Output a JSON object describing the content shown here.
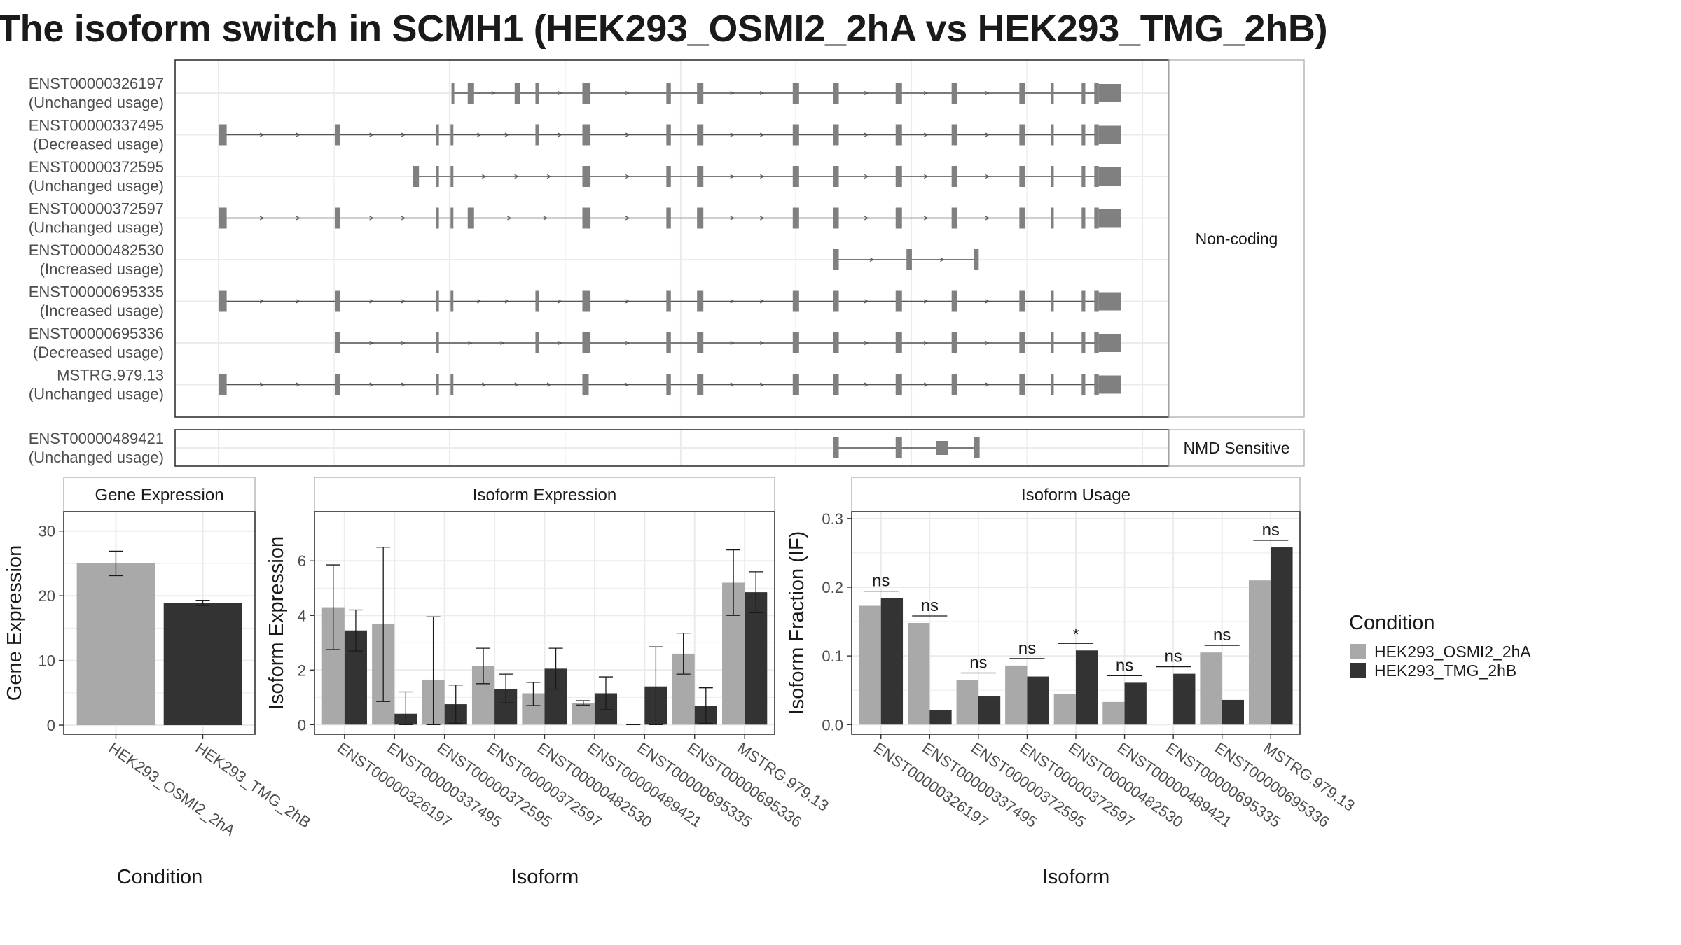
{
  "title": "The isoform switch in SCMH1 (HEK293_OSMI2_2hA vs HEK293_TMG_2hB)",
  "colors": {
    "cond_a": "#a9a9a9",
    "cond_b": "#333333",
    "exon": "#808080",
    "intron": "#555555",
    "grid": "#ebebeb",
    "panel_border": "#333333",
    "strip_border": "#b3b3b3"
  },
  "structure": {
    "strip_top": "Non-coding",
    "strip_bottom": "NMD Sensitive",
    "exon_slots": [
      {
        "start": 0.0,
        "end": 0.006
      },
      {
        "start": 0.129,
        "end": 0.135
      },
      {
        "start": 0.194,
        "end": 0.197
      },
      {
        "start": 0.241,
        "end": 0.244
      },
      {
        "start": 0.257,
        "end": 0.259
      },
      {
        "start": 0.366,
        "end": 0.372
      },
      {
        "start": 0.403,
        "end": 0.407
      },
      {
        "start": 0.412,
        "end": 0.417
      },
      {
        "start": 0.512,
        "end": 0.521
      },
      {
        "start": 0.616,
        "end": 0.62
      },
      {
        "start": 0.65,
        "end": 0.656
      },
      {
        "start": 0.76,
        "end": 0.765
      },
      {
        "start": 0.816,
        "end": 0.821
      },
      {
        "start": 0.951,
        "end": 0.955
      },
      {
        "start": 0.965,
        "end": 0.97
      },
      {
        "start": 0.981,
        "end": 1.0
      }
    ],
    "transcripts": [
      {
        "id": "ENST00000326197",
        "usage": "(Unchanged usage)",
        "exons": [
          [
            0.258,
            0.259
          ],
          [
            0.276,
            0.283
          ],
          [
            0.328,
            0.334
          ],
          [
            0.351,
            0.355
          ],
          [
            0.403,
            0.412
          ],
          [
            0.496,
            0.501
          ],
          [
            0.53,
            0.537
          ],
          [
            0.636,
            0.643
          ],
          [
            0.681,
            0.687
          ],
          [
            0.75,
            0.757
          ],
          [
            0.812,
            0.818
          ],
          [
            0.887,
            0.893
          ],
          [
            0.922,
            0.925
          ],
          [
            0.956,
            0.96
          ],
          [
            0.97,
            0.975
          ],
          [
            0.975,
            1.0
          ]
        ]
      },
      {
        "id": "ENST00000337495",
        "usage": "(Decreased usage)",
        "exons": [
          [
            0.0,
            0.009
          ],
          [
            0.129,
            0.135
          ],
          [
            0.241,
            0.244
          ],
          [
            0.257,
            0.259
          ],
          [
            0.351,
            0.355
          ],
          [
            0.403,
            0.412
          ],
          [
            0.496,
            0.501
          ],
          [
            0.53,
            0.537
          ],
          [
            0.636,
            0.643
          ],
          [
            0.681,
            0.687
          ],
          [
            0.75,
            0.757
          ],
          [
            0.812,
            0.818
          ],
          [
            0.887,
            0.893
          ],
          [
            0.922,
            0.925
          ],
          [
            0.956,
            0.96
          ],
          [
            0.97,
            0.975
          ],
          [
            0.975,
            1.0
          ]
        ]
      },
      {
        "id": "ENST00000372595",
        "usage": "(Unchanged usage)",
        "exons": [
          [
            0.215,
            0.222
          ],
          [
            0.241,
            0.244
          ],
          [
            0.257,
            0.259
          ],
          [
            0.403,
            0.412
          ],
          [
            0.496,
            0.501
          ],
          [
            0.53,
            0.537
          ],
          [
            0.636,
            0.643
          ],
          [
            0.681,
            0.687
          ],
          [
            0.75,
            0.757
          ],
          [
            0.812,
            0.818
          ],
          [
            0.887,
            0.893
          ],
          [
            0.922,
            0.925
          ],
          [
            0.956,
            0.96
          ],
          [
            0.97,
            0.975
          ],
          [
            0.975,
            1.0
          ]
        ]
      },
      {
        "id": "ENST00000372597",
        "usage": "(Unchanged usage)",
        "exons": [
          [
            0.0,
            0.009
          ],
          [
            0.129,
            0.135
          ],
          [
            0.241,
            0.244
          ],
          [
            0.257,
            0.259
          ],
          [
            0.276,
            0.283
          ],
          [
            0.403,
            0.412
          ],
          [
            0.496,
            0.501
          ],
          [
            0.53,
            0.537
          ],
          [
            0.636,
            0.643
          ],
          [
            0.681,
            0.687
          ],
          [
            0.75,
            0.757
          ],
          [
            0.812,
            0.818
          ],
          [
            0.887,
            0.893
          ],
          [
            0.922,
            0.925
          ],
          [
            0.956,
            0.96
          ],
          [
            0.97,
            0.975
          ],
          [
            0.975,
            1.0
          ]
        ]
      },
      {
        "id": "ENST00000482530",
        "usage": "(Increased usage)",
        "exons": [
          [
            0.681,
            0.687
          ],
          [
            0.762,
            0.768
          ],
          [
            0.837,
            0.842
          ]
        ]
      },
      {
        "id": "ENST00000695335",
        "usage": "(Increased usage)",
        "exons": [
          [
            0.0,
            0.009
          ],
          [
            0.129,
            0.135
          ],
          [
            0.241,
            0.244
          ],
          [
            0.257,
            0.259
          ],
          [
            0.351,
            0.355
          ],
          [
            0.403,
            0.412
          ],
          [
            0.496,
            0.501
          ],
          [
            0.53,
            0.537
          ],
          [
            0.636,
            0.643
          ],
          [
            0.681,
            0.687
          ],
          [
            0.75,
            0.757
          ],
          [
            0.812,
            0.818
          ],
          [
            0.887,
            0.893
          ],
          [
            0.922,
            0.925
          ],
          [
            0.956,
            0.96
          ],
          [
            0.97,
            0.975
          ],
          [
            0.975,
            1.0
          ]
        ]
      },
      {
        "id": "ENST00000695336",
        "usage": "(Decreased usage)",
        "exons": [
          [
            0.129,
            0.135
          ],
          [
            0.241,
            0.244
          ],
          [
            0.351,
            0.355
          ],
          [
            0.403,
            0.412
          ],
          [
            0.496,
            0.501
          ],
          [
            0.53,
            0.537
          ],
          [
            0.636,
            0.643
          ],
          [
            0.681,
            0.687
          ],
          [
            0.75,
            0.757
          ],
          [
            0.812,
            0.818
          ],
          [
            0.887,
            0.893
          ],
          [
            0.922,
            0.925
          ],
          [
            0.956,
            0.96
          ],
          [
            0.97,
            0.975
          ],
          [
            0.975,
            1.0
          ]
        ]
      },
      {
        "id": "MSTRG.979.13",
        "usage": "(Unchanged usage)",
        "exons": [
          [
            0.0,
            0.009
          ],
          [
            0.129,
            0.135
          ],
          [
            0.241,
            0.244
          ],
          [
            0.257,
            0.259
          ],
          [
            0.403,
            0.41
          ],
          [
            0.496,
            0.501
          ],
          [
            0.53,
            0.537
          ],
          [
            0.636,
            0.643
          ],
          [
            0.681,
            0.687
          ],
          [
            0.75,
            0.757
          ],
          [
            0.812,
            0.818
          ],
          [
            0.887,
            0.893
          ],
          [
            0.922,
            0.925
          ],
          [
            0.956,
            0.96
          ],
          [
            0.97,
            0.975
          ],
          [
            0.975,
            1.0
          ]
        ]
      }
    ],
    "nmd_transcripts": [
      {
        "id": "ENST00000489421",
        "usage": "(Unchanged usage)",
        "exons": [
          [
            0.681,
            0.687
          ],
          [
            0.75,
            0.757
          ],
          [
            0.795,
            0.808
          ],
          [
            0.837,
            0.843
          ]
        ]
      }
    ]
  },
  "chart_data": [
    {
      "type": "bar",
      "title": "Gene Expression",
      "xlabel": "Condition",
      "ylabel": "Gene Expression",
      "categories": [
        "HEK293_OSMI2_2hA",
        "HEK293_TMG_2hB"
      ],
      "values": [
        25.0,
        18.9
      ],
      "errors": [
        [
          23.1,
          26.9
        ],
        [
          18.5,
          19.3
        ]
      ],
      "ylim": [
        -1.4,
        33
      ],
      "yticks": [
        0,
        10,
        20,
        30
      ],
      "grid": true
    },
    {
      "type": "bar",
      "title": "Isoform Expression",
      "xlabel": "Isoform",
      "ylabel": "Isoform Expression",
      "categories": [
        "ENST00000326197",
        "ENST00000337495",
        "ENST00000372595",
        "ENST00000372597",
        "ENST00000482530",
        "ENST00000489421",
        "ENST00000695335",
        "ENST00000695336",
        "MSTRG.979.13"
      ],
      "series": [
        {
          "name": "HEK293_OSMI2_2hA",
          "values": [
            4.3,
            3.7,
            1.65,
            2.15,
            1.15,
            0.8,
            0.0,
            2.6,
            5.2
          ],
          "errors": [
            [
              2.75,
              5.85
            ],
            [
              0.85,
              6.5
            ],
            [
              0.0,
              3.95
            ],
            [
              1.5,
              2.8
            ],
            [
              0.7,
              1.55
            ],
            [
              0.72,
              0.88
            ],
            [
              0.0,
              0.0
            ],
            [
              1.85,
              3.35
            ],
            [
              4.0,
              6.4
            ]
          ]
        },
        {
          "name": "HEK293_TMG_2hB",
          "values": [
            3.45,
            0.4,
            0.75,
            1.3,
            2.05,
            1.15,
            1.4,
            0.68,
            4.85
          ],
          "errors": [
            [
              2.7,
              4.2
            ],
            [
              0.0,
              1.2
            ],
            [
              0.05,
              1.45
            ],
            [
              0.8,
              1.85
            ],
            [
              1.3,
              2.8
            ],
            [
              0.55,
              1.75
            ],
            [
              0.0,
              2.85
            ],
            [
              0.05,
              1.35
            ],
            [
              4.1,
              5.6
            ]
          ]
        }
      ],
      "ylim": [
        -0.35,
        7.8
      ],
      "yticks": [
        0,
        2,
        4,
        6
      ],
      "grid": true
    },
    {
      "type": "bar",
      "title": "Isoform Usage",
      "xlabel": "Isoform",
      "ylabel": "Isoform Fraction (IF)",
      "categories": [
        "ENST00000326197",
        "ENST00000337495",
        "ENST00000372595",
        "ENST00000372597",
        "ENST00000482530",
        "ENST00000489421",
        "ENST00000695335",
        "ENST00000695336",
        "MSTRG.979.13"
      ],
      "series": [
        {
          "name": "HEK293_OSMI2_2hA",
          "values": [
            0.173,
            0.148,
            0.065,
            0.086,
            0.045,
            0.033,
            0.0,
            0.105,
            0.21
          ]
        },
        {
          "name": "HEK293_TMG_2hB",
          "values": [
            0.184,
            0.021,
            0.041,
            0.07,
            0.108,
            0.061,
            0.074,
            0.036,
            0.258
          ]
        }
      ],
      "significance": [
        "ns",
        "ns",
        "ns",
        "ns",
        "*",
        "ns",
        "ns",
        "ns",
        "ns"
      ],
      "ylim": [
        -0.014,
        0.31
      ],
      "yticks": [
        0.0,
        0.1,
        0.2,
        0.3
      ],
      "ytick_labels": [
        "0.0",
        "0.1",
        "0.2",
        "0.3"
      ],
      "grid": true
    }
  ],
  "legend": {
    "title": "Condition",
    "items": [
      {
        "label": "HEK293_OSMI2_2hA",
        "color": "#a9a9a9"
      },
      {
        "label": "HEK293_TMG_2hB",
        "color": "#333333"
      }
    ]
  }
}
